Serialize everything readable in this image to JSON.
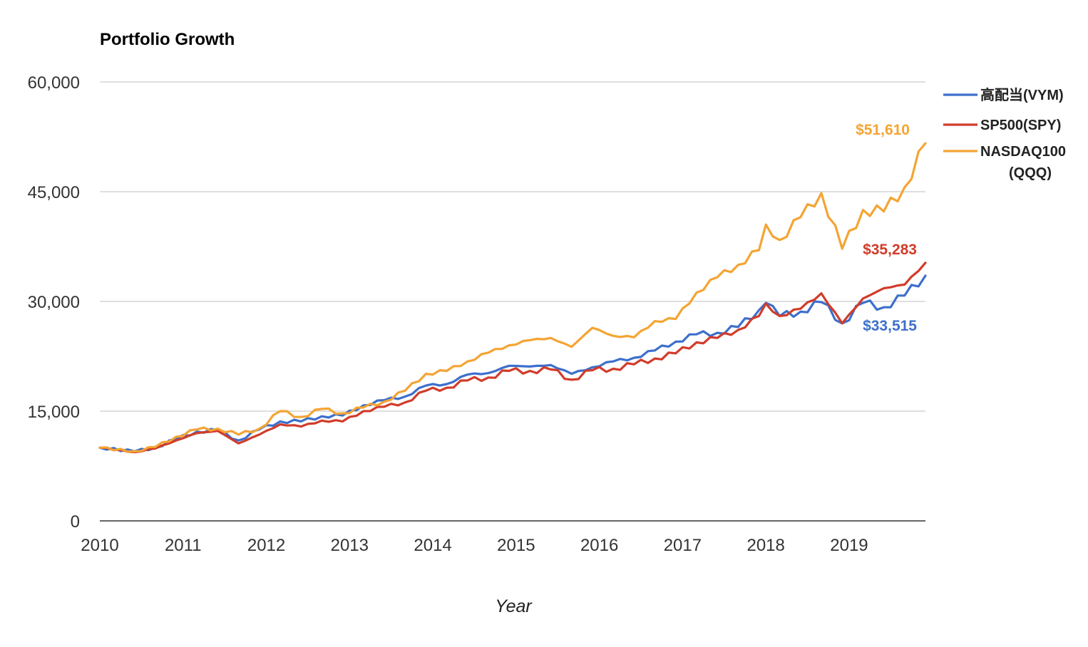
{
  "chart_data": {
    "type": "line",
    "title": "Portfolio Growth",
    "xlabel": "Year",
    "ylabel": "",
    "ylim": [
      0,
      60000
    ],
    "xlim": [
      "2010-01",
      "2019-12"
    ],
    "y_ticks": [
      "0",
      "15,000",
      "30,000",
      "45,000",
      "60,000"
    ],
    "y_tick_values": [
      0,
      15000,
      30000,
      45000,
      60000
    ],
    "x_ticks": [
      "2010",
      "2011",
      "2012",
      "2013",
      "2014",
      "2015",
      "2016",
      "2017",
      "2018",
      "2019"
    ],
    "x_tick_values": [
      2010,
      2011,
      2012,
      2013,
      2014,
      2015,
      2016,
      2017,
      2018,
      2019
    ],
    "grid": true,
    "legend_position": "right",
    "series": [
      {
        "name": "高配当(VYM)",
        "legend_lines": [
          "高配当(VYM)"
        ],
        "color": "#3d6fcc",
        "end_label": "$33,515",
        "points": [
          [
            "2010-01",
            10000
          ],
          [
            "2010-06",
            9500
          ],
          [
            "2010-09",
            10000
          ],
          [
            "2010-12",
            11200
          ],
          [
            "2011-03",
            12200
          ],
          [
            "2011-06",
            12400
          ],
          [
            "2011-09",
            11000
          ],
          [
            "2011-12",
            12500
          ],
          [
            "2012-03",
            13600
          ],
          [
            "2012-06",
            13600
          ],
          [
            "2012-09",
            14300
          ],
          [
            "2012-12",
            14400
          ],
          [
            "2013-03",
            15800
          ],
          [
            "2013-06",
            16500
          ],
          [
            "2013-09",
            17000
          ],
          [
            "2013-12",
            18500
          ],
          [
            "2014-03",
            18700
          ],
          [
            "2014-06",
            20000
          ],
          [
            "2014-09",
            20200
          ],
          [
            "2014-12",
            21200
          ],
          [
            "2015-03",
            21100
          ],
          [
            "2015-06",
            21300
          ],
          [
            "2015-09",
            20100
          ],
          [
            "2015-12",
            21000
          ],
          [
            "2016-03",
            21800
          ],
          [
            "2016-06",
            22300
          ],
          [
            "2016-09",
            23300
          ],
          [
            "2016-12",
            24500
          ],
          [
            "2017-03",
            25500
          ],
          [
            "2017-06",
            25700
          ],
          [
            "2017-09",
            26500
          ],
          [
            "2017-12",
            28800
          ],
          [
            "2018-01",
            29800
          ],
          [
            "2018-03",
            28000
          ],
          [
            "2018-06",
            28600
          ],
          [
            "2018-09",
            29900
          ],
          [
            "2018-12",
            27000
          ],
          [
            "2019-03",
            29800
          ],
          [
            "2019-06",
            29200
          ],
          [
            "2019-09",
            30800
          ],
          [
            "2019-12",
            33515
          ]
        ]
      },
      {
        "name": "SP500(SPY)",
        "legend_lines": [
          "SP500(SPY)"
        ],
        "color": "#d13c2a",
        "end_label": "$35,283",
        "points": [
          [
            "2010-01",
            10000
          ],
          [
            "2010-06",
            9400
          ],
          [
            "2010-09",
            9900
          ],
          [
            "2010-12",
            11000
          ],
          [
            "2011-03",
            12000
          ],
          [
            "2011-06",
            12300
          ],
          [
            "2011-09",
            10600
          ],
          [
            "2011-12",
            11800
          ],
          [
            "2012-03",
            13200
          ],
          [
            "2012-06",
            12900
          ],
          [
            "2012-09",
            13700
          ],
          [
            "2012-12",
            13600
          ],
          [
            "2013-03",
            15000
          ],
          [
            "2013-06",
            15600
          ],
          [
            "2013-09",
            16200
          ],
          [
            "2013-12",
            17800
          ],
          [
            "2014-03",
            18200
          ],
          [
            "2014-06",
            19200
          ],
          [
            "2014-09",
            19600
          ],
          [
            "2014-12",
            20500
          ],
          [
            "2015-03",
            20500
          ],
          [
            "2015-06",
            20700
          ],
          [
            "2015-09",
            19300
          ],
          [
            "2015-12",
            20600
          ],
          [
            "2016-03",
            20800
          ],
          [
            "2016-06",
            21400
          ],
          [
            "2016-09",
            22200
          ],
          [
            "2016-12",
            22900
          ],
          [
            "2017-03",
            24400
          ],
          [
            "2017-06",
            25000
          ],
          [
            "2017-09",
            26100
          ],
          [
            "2017-12",
            28000
          ],
          [
            "2018-01",
            29700
          ],
          [
            "2018-03",
            28000
          ],
          [
            "2018-06",
            29000
          ],
          [
            "2018-09",
            31100
          ],
          [
            "2018-12",
            27000
          ],
          [
            "2019-03",
            30400
          ],
          [
            "2019-06",
            31800
          ],
          [
            "2019-09",
            32300
          ],
          [
            "2019-12",
            35283
          ]
        ]
      },
      {
        "name": "NASDAQ100 (QQQ)",
        "legend_lines": [
          "NASDAQ100",
          "(QQQ)"
        ],
        "color": "#f4a433",
        "end_label": "$51,610",
        "points": [
          [
            "2010-01",
            10000
          ],
          [
            "2010-06",
            9500
          ],
          [
            "2010-09",
            10100
          ],
          [
            "2010-12",
            11500
          ],
          [
            "2011-03",
            12500
          ],
          [
            "2011-06",
            12600
          ],
          [
            "2011-09",
            11800
          ],
          [
            "2011-12",
            12600
          ],
          [
            "2012-03",
            15000
          ],
          [
            "2012-06",
            14200
          ],
          [
            "2012-09",
            15300
          ],
          [
            "2012-12",
            14700
          ],
          [
            "2013-03",
            15500
          ],
          [
            "2013-06",
            16300
          ],
          [
            "2013-09",
            17800
          ],
          [
            "2013-12",
            20100
          ],
          [
            "2014-03",
            20500
          ],
          [
            "2014-06",
            21800
          ],
          [
            "2014-09",
            23000
          ],
          [
            "2014-12",
            24000
          ],
          [
            "2015-03",
            24700
          ],
          [
            "2015-06",
            25000
          ],
          [
            "2015-09",
            23800
          ],
          [
            "2015-12",
            26400
          ],
          [
            "2016-03",
            25300
          ],
          [
            "2016-06",
            25100
          ],
          [
            "2016-09",
            27300
          ],
          [
            "2016-12",
            27600
          ],
          [
            "2017-03",
            31200
          ],
          [
            "2017-06",
            33300
          ],
          [
            "2017-09",
            35000
          ],
          [
            "2017-12",
            37000
          ],
          [
            "2018-01",
            40500
          ],
          [
            "2018-03",
            38400
          ],
          [
            "2018-06",
            41500
          ],
          [
            "2018-09",
            44800
          ],
          [
            "2018-12",
            37200
          ],
          [
            "2019-03",
            42500
          ],
          [
            "2019-06",
            42300
          ],
          [
            "2019-09",
            45600
          ],
          [
            "2019-12",
            51610
          ]
        ]
      }
    ]
  }
}
